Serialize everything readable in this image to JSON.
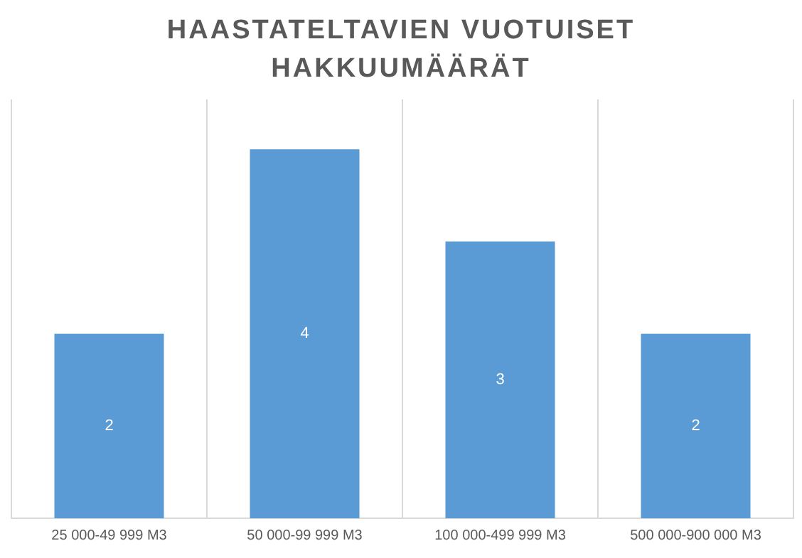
{
  "chart_data": {
    "type": "bar",
    "title": "HAASTATELTAVIEN VUOTUISET HAKKUUMÄÄRÄT",
    "categories": [
      "25 000-49 999 M3",
      "50 000-99 999 M3",
      "100 000-499 999 M3",
      "500 000-900 000 M3"
    ],
    "values": [
      2,
      4,
      3,
      2
    ],
    "color": "#5b9bd5",
    "data_labels": true,
    "grid": "x",
    "legend": false
  }
}
